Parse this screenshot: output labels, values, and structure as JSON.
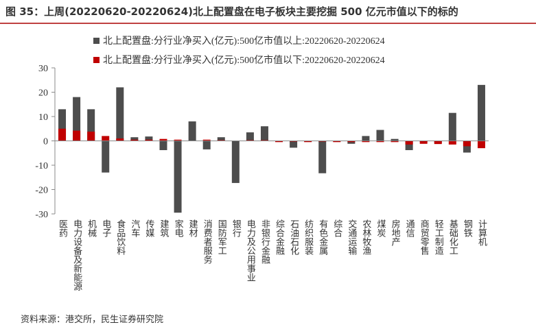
{
  "chart_data": {
    "type": "bar",
    "title": "图 35：上周(20220620-20220624)北上配置盘在电子板块主要挖掘 500 亿元市值以下的标的",
    "source": "资料来源：港交所，民生证券研究院",
    "categories": [
      "医药",
      "电力设备及新能源",
      "机械",
      "电子",
      "食品饮料",
      "汽车",
      "传媒",
      "建筑",
      "家电",
      "建材",
      "消费者服务",
      "国防军工",
      "银行",
      "电力及公用事业",
      "非银行金融",
      "综合金融",
      "石油石化",
      "纺织服装",
      "有色金属",
      "综合",
      "交通运输",
      "农林牧渔",
      "煤炭",
      "房地产",
      "通信",
      "商贸零售",
      "轻工制造",
      "基础化工",
      "钢铁",
      "计算机"
    ],
    "series": [
      {
        "name": "北上配置盘:分行业净买入(亿元):500亿市值以上:20220620-20220624",
        "color": "#4d4d4d",
        "values": [
          13,
          18,
          13,
          -13,
          22,
          1.5,
          1.8,
          -3.8,
          -29.5,
          8,
          -3.5,
          1.5,
          -17.3,
          3.5,
          6,
          -0.3,
          -2.8,
          -0.3,
          -13.3,
          -0.2,
          -1.2,
          2,
          4.5,
          0.8,
          -3.8,
          -0.5,
          -0.8,
          11.5,
          -4.8,
          23
        ]
      },
      {
        "name": "北上配置盘:分行业净买入(亿元):500亿市值以下:20220620-20220624",
        "color": "#c00000",
        "values": [
          5,
          4.2,
          3.8,
          2,
          1,
          0.5,
          0.5,
          0.8,
          0.5,
          0,
          0.5,
          0.3,
          0,
          0.3,
          0.3,
          -0.5,
          -0.3,
          -0.5,
          -0.3,
          -0.5,
          -0.5,
          -0.5,
          -0.5,
          -0.5,
          -1.5,
          -1.2,
          -1.3,
          -1.5,
          -2.2,
          -3
        ]
      }
    ],
    "ylim": [
      -30,
      30
    ],
    "yticks": [
      -30,
      -20,
      -10,
      0,
      10,
      20,
      30
    ]
  }
}
